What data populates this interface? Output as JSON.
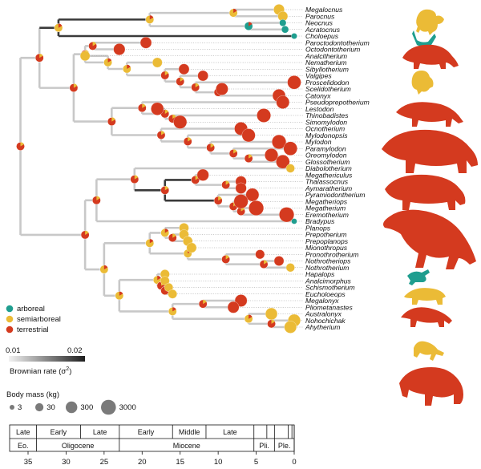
{
  "colors": {
    "arboreal": "#1f9e8f",
    "semiarboreal": "#ebbb36",
    "terrestrial": "#d43a1f",
    "branch_light": "#c8c8c8",
    "branch_dark": "#3a3a3a"
  },
  "legend": {
    "states": [
      {
        "key": "arboreal",
        "label": "arboreal"
      },
      {
        "key": "semiarboreal",
        "label": "semiarboreal"
      },
      {
        "key": "terrestrial",
        "label": "terrestrial"
      }
    ],
    "rate": {
      "min_label": "0.01",
      "max_label": "0.02",
      "title_prefix": "Brownian rate (σ",
      "title_sup": "2",
      "title_suffix": ")"
    },
    "mass": {
      "title": "Body mass (kg)",
      "items": [
        {
          "label": "3",
          "value": 3
        },
        {
          "label": "30",
          "value": 30
        },
        {
          "label": "300",
          "value": 300
        },
        {
          "label": "3000",
          "value": 3000
        }
      ]
    }
  },
  "taxa": [
    {
      "name": "Megalocnus",
      "state": "semiarboreal",
      "mass": 180,
      "tip_age": 2
    },
    {
      "name": "Parocnus",
      "state": "semiarboreal",
      "mass": 100,
      "tip_age": 1.5
    },
    {
      "name": "Neocnus",
      "state": "arboreal",
      "mass": 12,
      "tip_age": 1.5
    },
    {
      "name": "Acratocnus",
      "state": "arboreal",
      "mass": 15,
      "tip_age": 1.2
    },
    {
      "name": "Choloepus",
      "state": "arboreal",
      "mass": 6,
      "tip_age": 0
    },
    {
      "name": "Paroctodontotherium",
      "state": "terrestrial",
      "mass": 260,
      "tip_age": 19.5
    },
    {
      "name": "Octodontotherium",
      "state": "terrestrial",
      "mass": 320,
      "tip_age": 23
    },
    {
      "name": "Analcitherium",
      "state": "semiarboreal",
      "mass": 90,
      "tip_age": 27.5
    },
    {
      "name": "Nematherium",
      "state": "semiarboreal",
      "mass": 90,
      "tip_age": 18
    },
    {
      "name": "Sibyllotherium",
      "state": "terrestrial",
      "mass": 160,
      "tip_age": 14.5
    },
    {
      "name": "Valgipes",
      "state": "terrestrial",
      "mass": 150,
      "tip_age": 12
    },
    {
      "name": "Proscelidodon",
      "state": "terrestrial",
      "mass": 1200,
      "tip_age": 0
    },
    {
      "name": "Scelidotherium",
      "state": "terrestrial",
      "mass": 500,
      "tip_age": 9.5
    },
    {
      "name": "Catonyx",
      "state": "terrestrial",
      "mass": 800,
      "tip_age": 2
    },
    {
      "name": "Pseudoprepotherium",
      "state": "terrestrial",
      "mass": 900,
      "tip_age": 1.5
    },
    {
      "name": "Lestodon",
      "state": "terrestrial",
      "mass": 700,
      "tip_age": 18
    },
    {
      "name": "Thinobadistes",
      "state": "terrestrial",
      "mass": 1500,
      "tip_age": 4
    },
    {
      "name": "Simomylodon",
      "state": "terrestrial",
      "mass": 1000,
      "tip_age": 15
    },
    {
      "name": "Ocnotherium",
      "state": "terrestrial",
      "mass": 900,
      "tip_age": 7
    },
    {
      "name": "Mylodonopsis",
      "state": "terrestrial",
      "mass": 1000,
      "tip_age": 6
    },
    {
      "name": "Mylodon",
      "state": "terrestrial",
      "mass": 1800,
      "tip_age": 2
    },
    {
      "name": "Paramylodon",
      "state": "terrestrial",
      "mass": 1300,
      "tip_age": 0.5
    },
    {
      "name": "Oreomylodon",
      "state": "terrestrial",
      "mass": 1000,
      "tip_age": 3
    },
    {
      "name": "Glossotherium",
      "state": "terrestrial",
      "mass": 1200,
      "tip_age": 1.5
    },
    {
      "name": "Diabolotherium",
      "state": "semiarboreal",
      "mass": 40,
      "tip_age": 0.5
    },
    {
      "name": "Megathericulus",
      "state": "terrestrial",
      "mass": 350,
      "tip_age": 12
    },
    {
      "name": "Thalassocnus",
      "state": "terrestrial",
      "mass": 200,
      "tip_age": 7
    },
    {
      "name": "Aymaratherium",
      "state": "terrestrial",
      "mass": 200,
      "tip_age": 7
    },
    {
      "name": "Pyramiodontherium",
      "state": "terrestrial",
      "mass": 900,
      "tip_age": 5.5
    },
    {
      "name": "Megatheriops",
      "state": "terrestrial",
      "mass": 1800,
      "tip_age": 7
    },
    {
      "name": "Megatherium",
      "state": "terrestrial",
      "mass": 3000,
      "tip_age": 5
    },
    {
      "name": "Eremotherium",
      "state": "terrestrial",
      "mass": 3000,
      "tip_age": 1
    },
    {
      "name": "Bradypus",
      "state": "arboreal",
      "mass": 5,
      "tip_age": 0
    },
    {
      "name": "Planops",
      "state": "semiarboreal",
      "mass": 80,
      "tip_age": 14.5
    },
    {
      "name": "Prepotherium",
      "state": "semiarboreal",
      "mass": 80,
      "tip_age": 14.5
    },
    {
      "name": "Prepoplanops",
      "state": "semiarboreal",
      "mass": 80,
      "tip_age": 14
    },
    {
      "name": "Mionothropus",
      "state": "semiarboreal",
      "mass": 100,
      "tip_age": 13.5
    },
    {
      "name": "Pronothrotherium",
      "state": "terrestrial",
      "mass": 60,
      "tip_age": 4.5
    },
    {
      "name": "Nothrotheriops",
      "state": "terrestrial",
      "mass": 90,
      "tip_age": 2
    },
    {
      "name": "Nothrotherium",
      "state": "semiarboreal",
      "mass": 40,
      "tip_age": 0.5
    },
    {
      "name": "Hapalops",
      "state": "semiarboreal",
      "mass": 60,
      "tip_age": 17
    },
    {
      "name": "Analcimorphus",
      "state": "semiarboreal",
      "mass": 50,
      "tip_age": 17
    },
    {
      "name": "Schismotherium",
      "state": "semiarboreal",
      "mass": 40,
      "tip_age": 16.5
    },
    {
      "name": "Eucholoeops",
      "state": "semiarboreal",
      "mass": 50,
      "tip_age": 16
    },
    {
      "name": "Megalonyx",
      "state": "terrestrial",
      "mass": 500,
      "tip_age": 7
    },
    {
      "name": "Pliometanastes",
      "state": "terrestrial",
      "mass": 300,
      "tip_age": 8
    },
    {
      "name": "Australonyx",
      "state": "semiarboreal",
      "mass": 400,
      "tip_age": 3
    },
    {
      "name": "Nohochichak",
      "state": "semiarboreal",
      "mass": 600,
      "tip_age": 0
    },
    {
      "name": "Ahytherium",
      "state": "semiarboreal",
      "mass": 500,
      "tip_age": 0.5
    }
  ],
  "timescale": {
    "epochs_sub": [
      {
        "label": "Late",
        "start": 36,
        "end": 33.9
      },
      {
        "label": "Early",
        "start": 33.9,
        "end": 28.1
      },
      {
        "label": "Late",
        "start": 28.1,
        "end": 23
      },
      {
        "label": "Early",
        "start": 23,
        "end": 16
      },
      {
        "label": "Middle",
        "start": 16,
        "end": 11.6
      },
      {
        "label": "Late",
        "start": 11.6,
        "end": 5.3
      },
      {
        "label": "",
        "start": 5.3,
        "end": 3.6
      },
      {
        "label": "",
        "start": 3.6,
        "end": 2.6
      },
      {
        "label": "",
        "start": 2.6,
        "end": 0.8
      },
      {
        "label": "",
        "start": 0.8,
        "end": 0.3
      },
      {
        "label": "",
        "start": 0.3,
        "end": 0
      }
    ],
    "epochs": [
      {
        "label": "Eo.",
        "start": 36,
        "end": 33.9
      },
      {
        "label": "Oligocene",
        "start": 33.9,
        "end": 23
      },
      {
        "label": "Miocene",
        "start": 23,
        "end": 5.3
      },
      {
        "label": "Pli.",
        "start": 5.3,
        "end": 2.6
      },
      {
        "label": "Ple.",
        "start": 2.6,
        "end": 0
      }
    ],
    "ticks": [
      35,
      30,
      25,
      20,
      15,
      10,
      5,
      0
    ]
  }
}
